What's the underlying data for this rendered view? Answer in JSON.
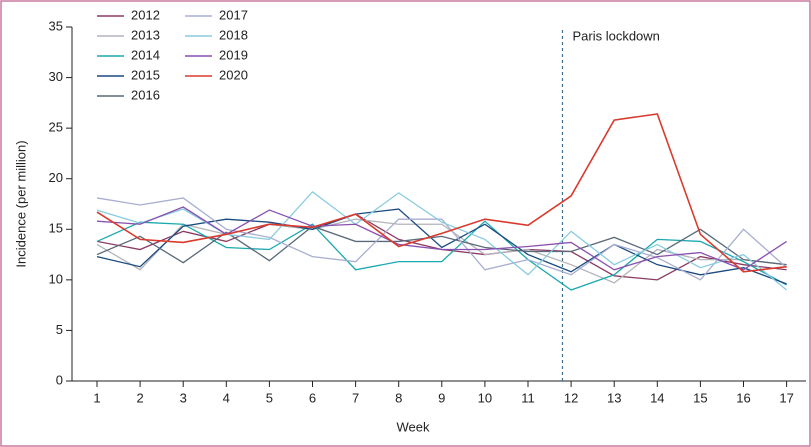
{
  "chart_data": {
    "type": "line",
    "x_label": "Week",
    "y_label": "Incidence (per million)",
    "x": [
      1,
      2,
      3,
      4,
      5,
      6,
      7,
      8,
      9,
      10,
      11,
      12,
      13,
      14,
      15,
      16,
      17
    ],
    "xlim": [
      0.42,
      17.45
    ],
    "xticks": [
      1,
      2,
      3,
      4,
      5,
      6,
      7,
      8,
      9,
      10,
      11,
      12,
      13,
      14,
      15,
      16,
      17
    ],
    "ylim": [
      0,
      35
    ],
    "yticks": [
      0,
      5,
      10,
      15,
      20,
      25,
      30,
      35
    ],
    "legend": "top-left",
    "annotations": [
      {
        "text": "Paris lockdown",
        "x": 11.8
      }
    ],
    "series": [
      {
        "name": "2012",
        "color": "#8b3a62",
        "values": [
          13.8,
          13,
          14.8,
          13.8,
          15.5,
          15,
          16.5,
          14,
          13,
          12.5,
          13,
          12.8,
          10.4,
          10,
          12.3,
          11.5,
          11
        ]
      },
      {
        "name": "2013",
        "color": "#b3b3bb",
        "values": [
          13.5,
          11,
          15.5,
          14.5,
          15.5,
          15,
          16,
          15.5,
          15.5,
          12.5,
          13,
          11.5,
          9.7,
          13,
          12,
          12,
          11.5
        ]
      },
      {
        "name": "2014",
        "color": "#1aa8b0",
        "values": [
          13.8,
          15.7,
          15.5,
          13.2,
          13,
          15.5,
          11,
          11.8,
          11.8,
          15.8,
          12,
          9,
          10.5,
          14,
          13.8,
          11.8,
          9.5
        ]
      },
      {
        "name": "2015",
        "color": "#1a4a80",
        "values": [
          12.3,
          11.3,
          15.3,
          16,
          15.7,
          15,
          16.5,
          17,
          13.2,
          15.5,
          12.5,
          10.8,
          13.5,
          11.5,
          10.5,
          11.2,
          9.6
        ]
      },
      {
        "name": "2016",
        "color": "#5a6a7a",
        "values": [
          12.5,
          14.3,
          11.7,
          14.7,
          11.9,
          15.3,
          13.8,
          13.8,
          14.3,
          13.2,
          12.8,
          12.8,
          14.2,
          12.5,
          15,
          12,
          11.5
        ]
      },
      {
        "name": "2017",
        "color": "#a8aed0",
        "values": [
          18.1,
          17.4,
          18.1,
          15,
          14.2,
          12.3,
          11.8,
          16,
          16,
          11,
          12,
          10.5,
          13.5,
          12.2,
          10,
          15,
          11.2
        ]
      },
      {
        "name": "2018",
        "color": "#88cce0",
        "values": [
          16.9,
          15.6,
          17,
          14.5,
          14,
          18.7,
          15.5,
          18.6,
          15.7,
          14,
          10.5,
          14.8,
          11.5,
          13.5,
          11.2,
          12.5,
          9
        ]
      },
      {
        "name": "2019",
        "color": "#8a50b0",
        "values": [
          15.8,
          15.5,
          17.2,
          14.5,
          16.9,
          15.3,
          15.5,
          13.5,
          13,
          13,
          13.3,
          13.7,
          11,
          12.3,
          12.7,
          11,
          13.8
        ]
      },
      {
        "name": "2020",
        "color": "#d93a2e",
        "values": [
          16.7,
          14,
          13.7,
          14.5,
          15.5,
          15.2,
          16.5,
          13.3,
          14.6,
          16,
          15.4,
          18.3,
          25.8,
          26.4,
          14.5,
          10.8,
          11.3
        ]
      }
    ]
  }
}
